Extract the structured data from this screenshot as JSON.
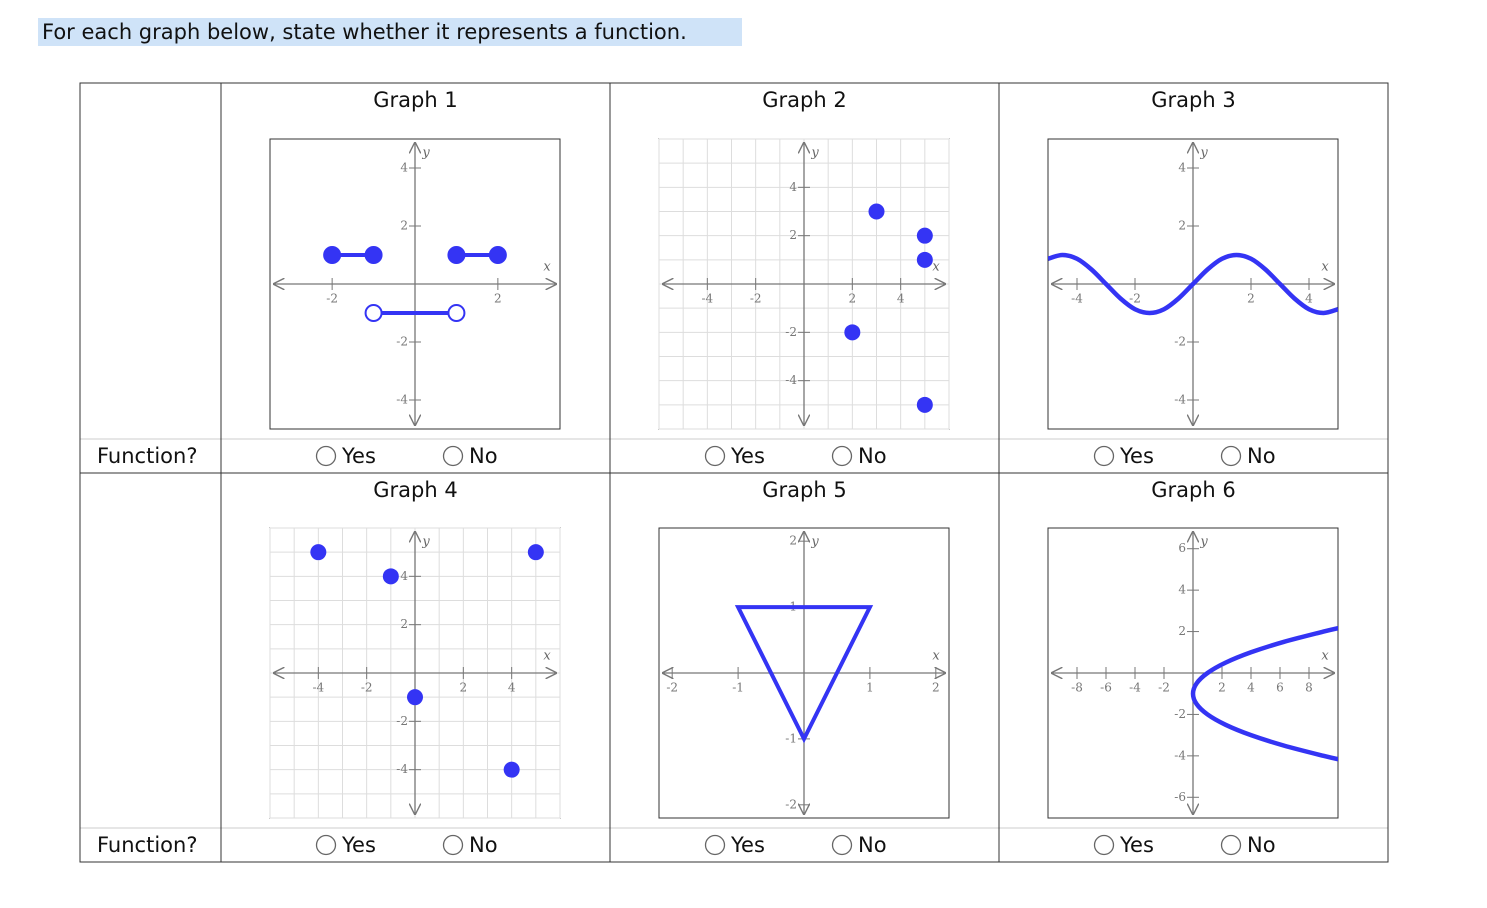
{
  "instruction": "For each graph below, state whether it represents a function.",
  "rows": [
    {
      "label": "Function?",
      "graphs": [
        {
          "title": "Graph 1",
          "x_label": "x",
          "y_label": "y",
          "xlim": [
            -3.5,
            3.5
          ],
          "ylim": [
            -5,
            5
          ],
          "xticks": [
            -2,
            2
          ],
          "yticks": [
            -4,
            -2,
            2,
            4
          ],
          "grid": false,
          "color": "#3434f4",
          "segments": [
            {
              "points": [
                [
                  -2,
                  1
                ],
                [
                  -1,
                  1
                ]
              ],
              "endpoints": "filled"
            },
            {
              "points": [
                [
                  1,
                  1
                ],
                [
                  2,
                  1
                ]
              ],
              "endpoints": "filled"
            },
            {
              "points": [
                [
                  -1,
                  -1
                ],
                [
                  1,
                  -1
                ]
              ],
              "endpoints": "open"
            }
          ],
          "options": [
            "Yes",
            "No"
          ]
        },
        {
          "title": "Graph 2",
          "x_label": "x",
          "y_label": "y",
          "xlim": [
            -6,
            6
          ],
          "ylim": [
            -6,
            6
          ],
          "xticks": [
            -4,
            -2,
            2,
            4
          ],
          "yticks": [
            -4,
            -2,
            2,
            4
          ],
          "grid": true,
          "color": "#3434f4",
          "points": {
            "x": [
              3,
              5,
              5,
              2,
              5
            ],
            "y": [
              3,
              2,
              1,
              -2,
              -5
            ]
          },
          "options": [
            "Yes",
            "No"
          ]
        },
        {
          "title": "Graph 3",
          "x_label": "x",
          "y_label": "y",
          "xlim": [
            -5,
            5
          ],
          "ylim": [
            -5,
            5
          ],
          "xticks": [
            -4,
            -2,
            2,
            4
          ],
          "yticks": [
            -4,
            -2,
            2,
            4
          ],
          "grid": false,
          "color": "#3434f4",
          "curve": {
            "x": [
              -5,
              -4.5,
              -4,
              -3.5,
              -3,
              -2.5,
              -2,
              -1.5,
              -1,
              -0.5,
              0,
              0.5,
              1,
              1.5,
              2,
              2.5,
              3,
              3.5,
              4,
              4.5,
              5
            ],
            "y": [
              0.87,
              1,
              0.87,
              0.5,
              0,
              -0.5,
              -0.87,
              -1,
              -0.87,
              -0.5,
              0,
              0.5,
              0.87,
              1,
              0.87,
              0.5,
              0,
              -0.5,
              -0.87,
              -1,
              -0.87
            ]
          },
          "options": [
            "Yes",
            "No"
          ]
        }
      ]
    },
    {
      "label": "Function?",
      "graphs": [
        {
          "title": "Graph 4",
          "x_label": "x",
          "y_label": "y",
          "xlim": [
            -6,
            6
          ],
          "ylim": [
            -6,
            6
          ],
          "xticks": [
            -4,
            -2,
            2,
            4
          ],
          "yticks": [
            -4,
            -2,
            2,
            4
          ],
          "grid": true,
          "color": "#3434f4",
          "points": {
            "x": [
              -4,
              -1,
              0,
              5,
              4
            ],
            "y": [
              5,
              4,
              -1,
              5,
              -4
            ]
          },
          "options": [
            "Yes",
            "No"
          ]
        },
        {
          "title": "Graph 5",
          "x_label": "x",
          "y_label": "y",
          "xlim": [
            -2.2,
            2.2
          ],
          "ylim": [
            -2.2,
            2.2
          ],
          "xticks": [
            -2,
            -1,
            1,
            2
          ],
          "yticks": [
            -2,
            -1,
            1,
            2
          ],
          "grid": false,
          "color": "#3434f4",
          "polygon": {
            "x": [
              -1,
              1,
              0
            ],
            "y": [
              1,
              1,
              -1
            ]
          },
          "options": [
            "Yes",
            "No"
          ]
        },
        {
          "title": "Graph 6",
          "x_label": "x",
          "y_label": "y",
          "xlim": [
            -10,
            10
          ],
          "ylim": [
            -7,
            7
          ],
          "xticks": [
            -8,
            -6,
            -4,
            -2,
            2,
            4,
            6,
            8
          ],
          "yticks": [
            -6,
            -4,
            -2,
            2,
            4,
            6
          ],
          "grid": false,
          "color": "#3434f4",
          "curve": {
            "x": [
              10.24,
              9,
              6.25,
              4,
              2.25,
              1,
              0.25,
              0,
              0.25,
              1,
              2.25,
              4,
              6.25,
              9,
              10.24
            ],
            "y": [
              -4.2,
              -4,
              -3.5,
              -3,
              -2.5,
              -2,
              -1.5,
              -1,
              -0.5,
              0,
              0.5,
              1,
              1.5,
              2,
              2.2
            ]
          },
          "options": [
            "Yes",
            "No"
          ]
        }
      ]
    }
  ]
}
